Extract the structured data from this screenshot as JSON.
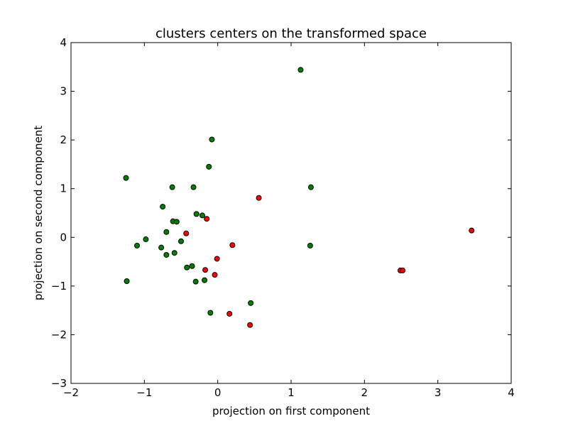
{
  "chart_data": {
    "type": "scatter",
    "title": "clusters centers on the transformed space",
    "xlabel": "projection on first component",
    "ylabel": "projection on second component",
    "xlim": [
      -2,
      4
    ],
    "ylim": [
      -3,
      4
    ],
    "xticks": [
      -2,
      -1,
      0,
      1,
      2,
      3,
      4
    ],
    "yticks": [
      -3,
      -2,
      -1,
      0,
      1,
      2,
      3,
      4
    ],
    "grid": false,
    "series": [
      {
        "color": "#008000",
        "points": [
          [
            1.13,
            3.44
          ],
          [
            -0.08,
            2.01
          ],
          [
            -0.12,
            1.45
          ],
          [
            -1.25,
            1.22
          ],
          [
            -0.62,
            1.03
          ],
          [
            -0.33,
            1.03
          ],
          [
            1.27,
            1.03
          ],
          [
            -0.75,
            0.63
          ],
          [
            -0.29,
            0.48
          ],
          [
            -0.21,
            0.45
          ],
          [
            -0.61,
            0.33
          ],
          [
            -0.56,
            0.32
          ],
          [
            -0.7,
            0.11
          ],
          [
            -0.98,
            -0.04
          ],
          [
            -0.5,
            -0.08
          ],
          [
            -1.1,
            -0.17
          ],
          [
            1.26,
            -0.17
          ],
          [
            -0.77,
            -0.21
          ],
          [
            -0.7,
            -0.36
          ],
          [
            -0.59,
            -0.32
          ],
          [
            -0.42,
            -0.62
          ],
          [
            -0.35,
            -0.59
          ],
          [
            -0.3,
            -0.91
          ],
          [
            -0.18,
            -0.88
          ],
          [
            -1.24,
            -0.9
          ],
          [
            0.45,
            -1.35
          ],
          [
            -0.1,
            -1.55
          ]
        ]
      },
      {
        "color": "#ff0000",
        "points": [
          [
            3.46,
            0.14
          ],
          [
            0.56,
            0.81
          ],
          [
            -0.15,
            0.38
          ],
          [
            -0.43,
            0.08
          ],
          [
            0.2,
            -0.16
          ],
          [
            -0.01,
            -0.44
          ],
          [
            -0.17,
            -0.67
          ],
          [
            -0.04,
            -0.77
          ],
          [
            2.49,
            -0.68
          ],
          [
            2.52,
            -0.68
          ],
          [
            0.16,
            -1.57
          ],
          [
            0.44,
            -1.8
          ]
        ]
      }
    ]
  }
}
